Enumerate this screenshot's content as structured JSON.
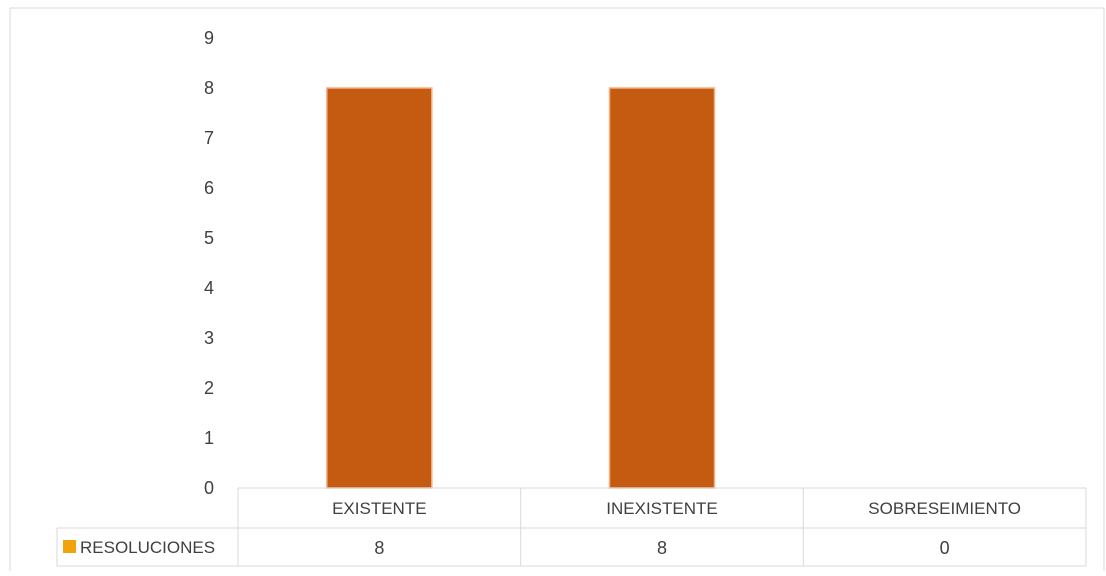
{
  "chart_data": {
    "type": "bar",
    "categories": [
      "EXISTENTE",
      "INEXISTENTE",
      "SOBRESEIMIENTO"
    ],
    "series": [
      {
        "name": "RESOLUCIONES",
        "values": [
          8,
          8,
          0
        ],
        "color": "#C55A11"
      }
    ],
    "ylim": [
      0,
      9
    ],
    "yticks": [
      0,
      1,
      2,
      3,
      4,
      5,
      6,
      7,
      8,
      9
    ],
    "grid": false,
    "legend": "data-table-left",
    "data_table": true
  }
}
